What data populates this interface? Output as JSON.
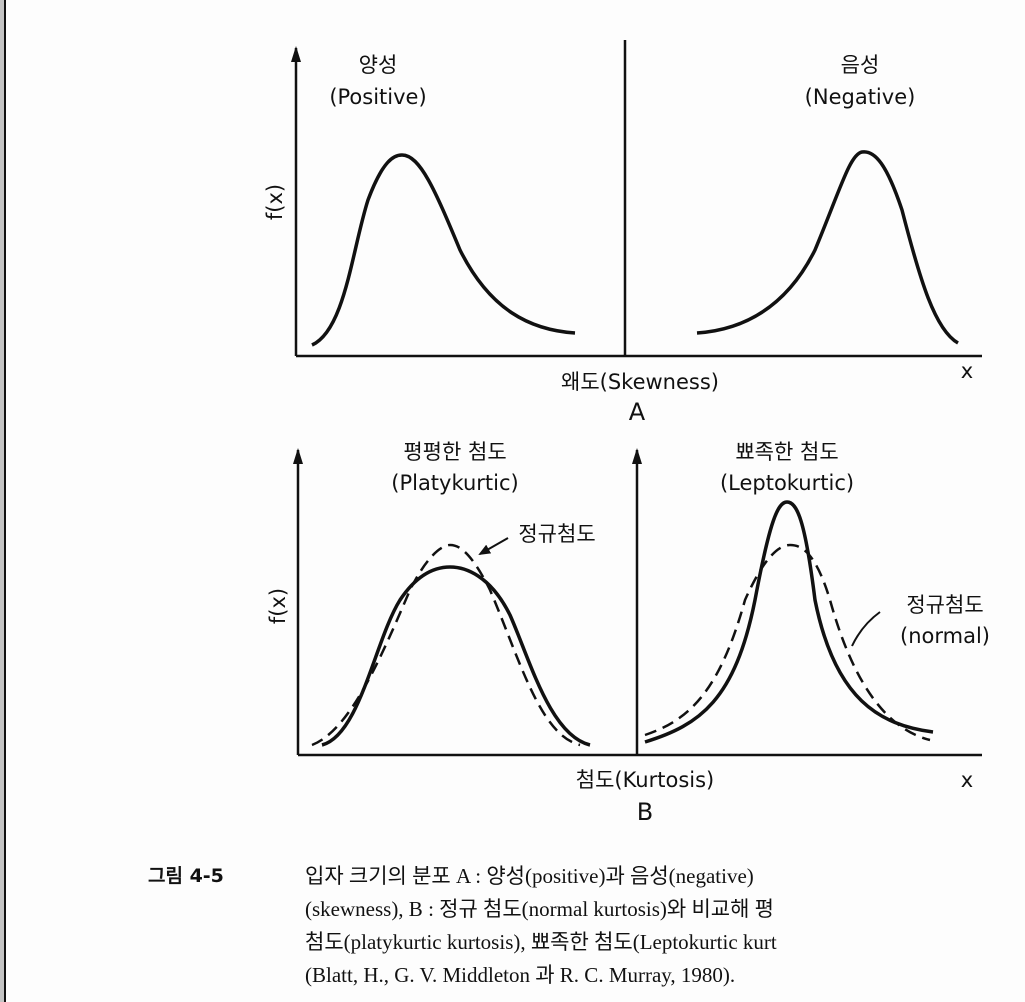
{
  "figure": {
    "panel_a": {
      "left_title_ko": "양성",
      "left_title_en": "(Positive)",
      "right_title_ko": "음성",
      "right_title_en": "(Negative)",
      "y_label": "f(x)",
      "x_label": "왜도(Skewness)",
      "x_axis": "x",
      "panel_letter": "A"
    },
    "panel_b": {
      "left_title_ko": "평평한 첨도",
      "left_title_en": "(Platykurtic)",
      "right_title_ko": "뾰족한 첨도",
      "right_title_en": "(Leptokurtic)",
      "left_annotation": "정규첨도",
      "right_annotation_ko": "정규첨도",
      "right_annotation_en": "(normal)",
      "y_label": "f(x)",
      "x_label": "첨도(Kurtosis)",
      "x_axis": "x",
      "panel_letter": "B"
    }
  },
  "caption": {
    "number": "그림 4-5",
    "lines": [
      "입자  크기의  분포  A : 양성(positive)과  음성(negative)",
      "(skewness),  B : 정규  첨도(normal kurtosis)와  비교해  평",
      "첨도(platykurtic kurtosis),  뾰족한  첨도(Leptokurtic kurt",
      "(Blatt, H., G. V. Middleton  과  R. C. Murray, 1980)."
    ]
  }
}
